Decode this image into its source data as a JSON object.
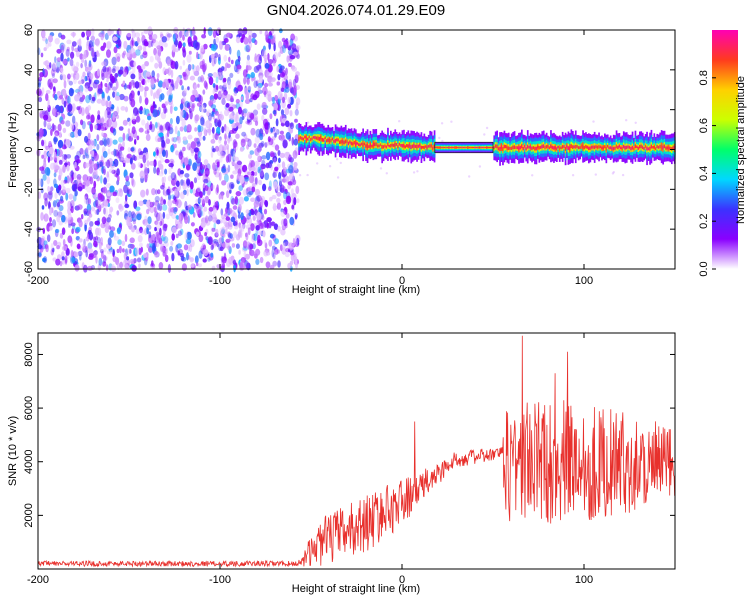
{
  "title": "GN04.2026.074.01.29.E09",
  "colors": {
    "line": "#e8302c",
    "spectral_colormap": [
      "#ffffff",
      "#8a00ff",
      "#3b32ff",
      "#00d8ff",
      "#00ff6a",
      "#ccff00",
      "#ffd000",
      "#ff3b1e",
      "#ff00b4"
    ]
  },
  "chart_data": [
    {
      "id": "spectrogram",
      "type": "heatmap",
      "xlabel": "Height of straight line (km)",
      "ylabel": "Frequency (Hz)",
      "xlim": [
        -200,
        150
      ],
      "ylim": [
        -60,
        60
      ],
      "xticks": [
        -200,
        -100,
        0,
        100
      ],
      "xtick_labels": [
        "-200",
        "-100",
        "0",
        "100"
      ],
      "yticks": [
        -60,
        -40,
        -20,
        0,
        20,
        40,
        60
      ],
      "ytick_labels": [
        "-60",
        "-40",
        "-20",
        "0",
        "20",
        "40",
        "60"
      ],
      "colorbar": {
        "label": "Normalized spectral amplitude",
        "range": [
          0,
          1
        ],
        "ticks": [
          0,
          0.2,
          0.4,
          0.6,
          0.8
        ],
        "tick_labels": [
          "0.0",
          "0.2",
          "0.4",
          "0.6",
          "0.8"
        ]
      },
      "regions": [
        {
          "name": "noise",
          "x_range": [
            -200,
            -57
          ],
          "freq_range": [
            -60,
            60
          ],
          "amplitude": "low, scattered"
        },
        {
          "name": "signal-band",
          "x_range": [
            -57,
            150
          ],
          "freq_center": [
            [
              -57,
              6
            ],
            [
              -40,
              5
            ],
            [
              -20,
              2
            ],
            [
              0,
              2
            ],
            [
              20,
              1
            ],
            [
              50,
              1
            ],
            [
              150,
              1
            ]
          ],
          "freq_halfwidth": 4,
          "amplitude": "high"
        }
      ]
    },
    {
      "id": "snr",
      "type": "line",
      "xlabel": "Height of straight line (km)",
      "ylabel": "SNR (10 * v/v)",
      "xlim": [
        -200,
        150
      ],
      "ylim": [
        0,
        8800
      ],
      "xticks": [
        -200,
        -100,
        0,
        100
      ],
      "xtick_labels": [
        "-200",
        "-100",
        "0",
        "100"
      ],
      "yticks": [
        2000,
        4000,
        6000,
        8000
      ],
      "ytick_labels": [
        "2000",
        "4000",
        "6000",
        "8000"
      ],
      "series": [
        {
          "name": "SNR",
          "envelope": [
            {
              "x": -200,
              "mean": 200,
              "spread": 100
            },
            {
              "x": -57,
              "mean": 200,
              "spread": 100
            },
            {
              "x": -45,
              "mean": 1000,
              "spread": 900
            },
            {
              "x": -20,
              "mean": 1700,
              "spread": 1100
            },
            {
              "x": 0,
              "mean": 2500,
              "spread": 900
            },
            {
              "x": 15,
              "mean": 3300,
              "spread": 500
            },
            {
              "x": 30,
              "mean": 4100,
              "spread": 300
            },
            {
              "x": 55,
              "mean": 4300,
              "spread": 250
            },
            {
              "x": 57,
              "mean": 4000,
              "spread": 2400
            },
            {
              "x": 100,
              "mean": 4000,
              "spread": 2300
            },
            {
              "x": 150,
              "mean": 3900,
              "spread": 1400
            }
          ],
          "peaks": [
            {
              "x": 7,
              "y": 5500
            },
            {
              "x": 66,
              "y": 8700
            },
            {
              "x": 91,
              "y": 8100
            },
            {
              "x": 84,
              "y": 7300
            }
          ]
        }
      ]
    }
  ]
}
